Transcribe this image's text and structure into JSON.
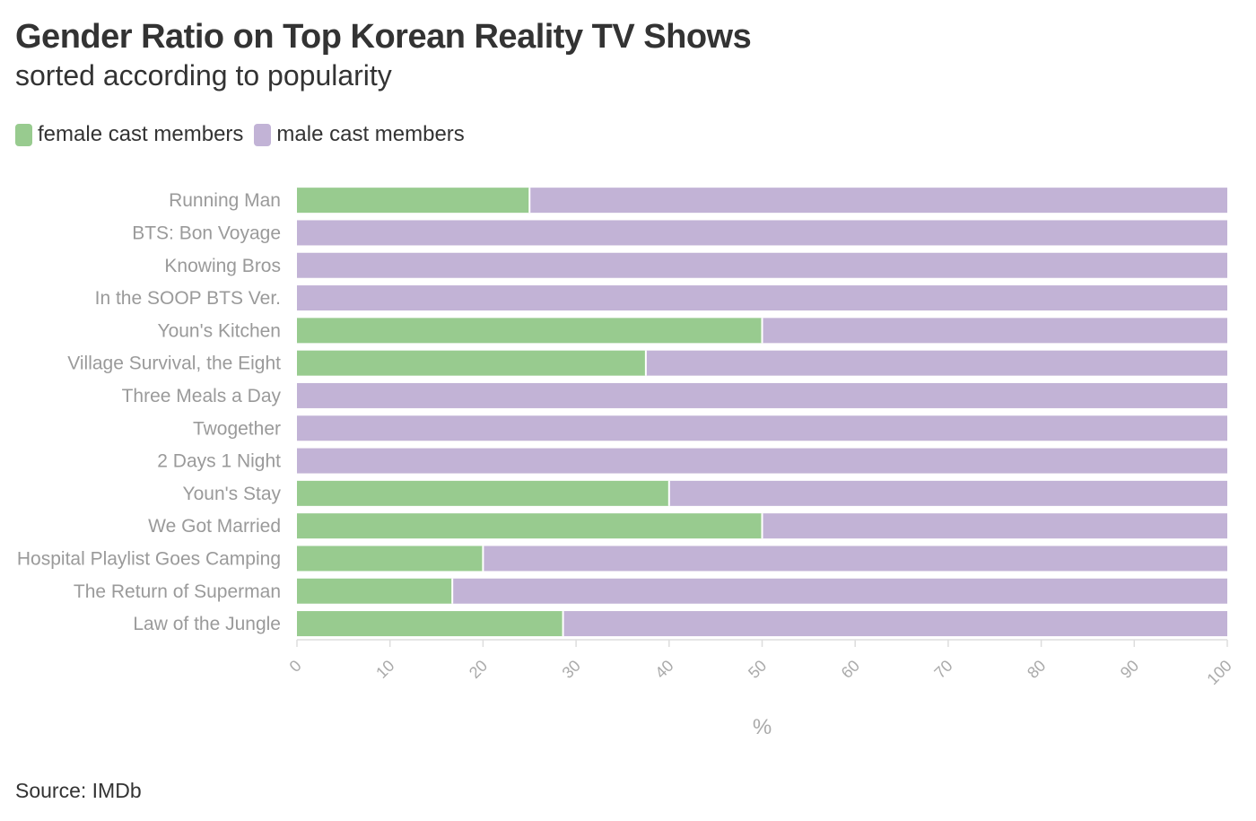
{
  "title": "Gender Ratio on Top Korean Reality TV Shows",
  "subtitle": "sorted according to popularity",
  "source": "Source: IMDb",
  "colors": {
    "female": "#98cb8f",
    "male": "#c2b3d6"
  },
  "legend": {
    "female": "female cast members",
    "male": "male cast members"
  },
  "chart_data": {
    "type": "bar",
    "orientation": "horizontal",
    "stacked": true,
    "title": "Gender Ratio on Top Korean Reality TV Shows",
    "subtitle": "sorted according to popularity",
    "xlabel": "%",
    "ylabel": "",
    "xlim": [
      0,
      100
    ],
    "xticks": [
      0,
      10,
      20,
      30,
      40,
      50,
      60,
      70,
      80,
      90,
      100
    ],
    "legend_position": "top-left",
    "categories": [
      "Running Man",
      "BTS: Bon Voyage",
      "Knowing Bros",
      "In the SOOP BTS Ver.",
      "Youn's Kitchen",
      "Village Survival, the Eight",
      "Three Meals a Day",
      "Twogether",
      "2 Days 1 Night",
      "Youn's Stay",
      "We Got Married",
      "Hospital Playlist Goes Camping",
      "The Return of Superman",
      "Law of the Jungle"
    ],
    "series": [
      {
        "name": "female cast members",
        "values": [
          25,
          0,
          0,
          0,
          50,
          37.5,
          0,
          0,
          0,
          40,
          50,
          20,
          16.7,
          28.6
        ]
      },
      {
        "name": "male cast members",
        "values": [
          75,
          100,
          100,
          100,
          50,
          62.5,
          100,
          100,
          100,
          60,
          50,
          80,
          83.3,
          71.4
        ]
      }
    ]
  }
}
